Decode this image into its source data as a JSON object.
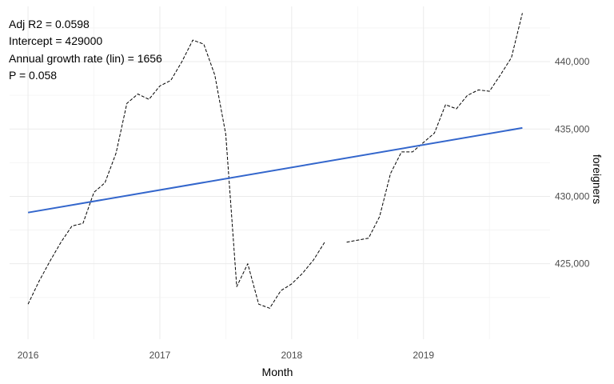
{
  "annotations": {
    "adj_r2": "Adj R2 =  0.0598",
    "intercept": "Intercept = 429000",
    "growth": "Annual growth rate (lin) = 1656",
    "p_value": "P = 0.058"
  },
  "chart_data": {
    "type": "line",
    "title": "",
    "xlabel": "Month",
    "ylabel": "foreigners",
    "y_axis_position": "right",
    "grid": true,
    "xlim": [
      2015.86,
      2019.96
    ],
    "ylim": [
      419400,
      444100
    ],
    "x_ticks": [
      2016,
      2017,
      2018,
      2019
    ],
    "x_tick_labels": [
      "2016",
      "2017",
      "2018",
      "2019"
    ],
    "y_ticks": [
      425000,
      430000,
      435000,
      440000
    ],
    "y_tick_labels": [
      "425,000",
      "430,000",
      "435,000",
      "440,000"
    ],
    "series": [
      {
        "style": "dashed",
        "color": "#000000",
        "x": [
          2016.0,
          2016.083,
          2016.167,
          2016.25,
          2016.333,
          2016.417,
          2016.5,
          2016.583,
          2016.667,
          2016.75,
          2016.833,
          2016.917,
          2017.0,
          2017.083,
          2017.167,
          2017.25,
          2017.333,
          2017.417,
          2017.5,
          2017.583,
          2017.667,
          2017.75,
          2017.833,
          2017.917,
          2018.0,
          2018.083,
          2018.167,
          2018.25
        ],
        "y": [
          422000,
          423700,
          425200,
          426600,
          427800,
          428000,
          430300,
          431000,
          433200,
          436900,
          437600,
          437200,
          438200,
          438600,
          440000,
          441600,
          441300,
          439000,
          434600,
          423300,
          425000,
          422000,
          421700,
          423000,
          423500,
          424300,
          425300,
          426600
        ]
      },
      {
        "style": "dashed",
        "color": "#000000",
        "x": [
          2018.417,
          2018.583,
          2018.667,
          2018.75,
          2018.833,
          2018.917,
          2019.0,
          2019.083,
          2019.167,
          2019.25,
          2019.333,
          2019.417,
          2019.5,
          2019.583,
          2019.667,
          2019.75
        ],
        "y": [
          426600,
          426900,
          428500,
          431700,
          433300,
          433300,
          434000,
          434700,
          436800,
          436500,
          437500,
          437900,
          437800,
          439000,
          440300,
          443600
        ]
      },
      {
        "style": "solid",
        "color": "#3366cc",
        "x": [
          2016.0,
          2019.75
        ],
        "y": [
          428800,
          435080
        ]
      }
    ]
  }
}
